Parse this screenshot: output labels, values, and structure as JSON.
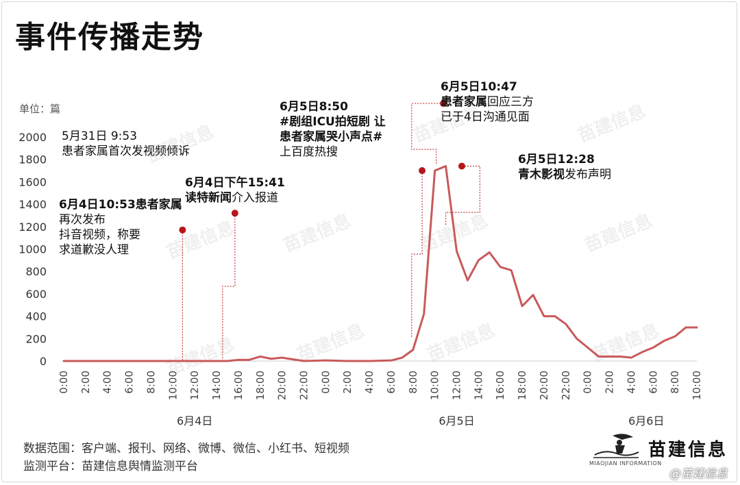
{
  "title": "事件传播走势",
  "unit_label": "单位：篇",
  "colors": {
    "line": "#c9595a",
    "dot": "#b5151b",
    "leader": "#c4393c",
    "axis": "#cccccc"
  },
  "annotations": [
    {
      "key": "a1",
      "bold": "",
      "rest": [
        "5月31日 9:53",
        "患者家属首次发视频倾诉"
      ],
      "marker": false
    },
    {
      "key": "a2",
      "bold": "6月4日10:53患者家属",
      "rest_inline": "再次发布",
      "rest": [
        "抖音视频，称要",
        "求道歉没人理"
      ],
      "marker_x": "6月4日 10:53",
      "marker_y": 1170
    },
    {
      "key": "a3",
      "bold": "6月4日下午15:41",
      "line2_bold": "读特新闻",
      "line2_rest": "介入报道",
      "marker_x": "6月4日 15:41",
      "marker_y": 1320
    },
    {
      "key": "a4",
      "bold": "6月5日8:50",
      "line2_bold": "#剧组ICU拍短剧 让",
      "line3_bold": "患者家属哭小声点#",
      "line4": "上百度热搜",
      "marker_x": "6月5日 08:50",
      "marker_y": 1700
    },
    {
      "key": "a5",
      "bold": "6月5日10:47",
      "line2_bold": "患者家属",
      "line2_rest": "回应三方",
      "line3": "已于4日沟通见面",
      "marker_x": "6月5日 10:47",
      "marker_y": 2300
    },
    {
      "key": "a6",
      "bold": "6月5日12:28",
      "line2_bold": "青木影视",
      "line2_rest": "发布声明",
      "marker_x": "6月5日 12:28",
      "marker_y": 1740
    }
  ],
  "footer": {
    "scope": "数据范围：客户端、报刊、网络、微博、微信、小红书、短视频",
    "platform": "监测平台：苗建信息舆情监测平台"
  },
  "brand": {
    "name": "苗建信息",
    "sub": "MIAOJIAN INFORMATION"
  },
  "watermark_text": "苗建信息",
  "bottom_watermark": "@苗建信息",
  "chart_data": {
    "type": "line",
    "title": "事件传播走势",
    "ylabel": "单位：篇",
    "ylim": [
      0,
      2000
    ],
    "yticks": [
      0,
      200,
      400,
      600,
      800,
      1000,
      1200,
      1400,
      1600,
      1800,
      2000
    ],
    "grid": false,
    "xtick_labels": [
      "0:00",
      "2:00",
      "4:00",
      "6:00",
      "8:00",
      "10:00",
      "12:00",
      "14:00",
      "16:00",
      "18:00",
      "20:00",
      "22:00",
      "0:00",
      "2:00",
      "4:00",
      "6:00",
      "8:00",
      "10:00",
      "12:00",
      "14:00",
      "16:00",
      "18:00",
      "20:00",
      "22:00",
      "0:00",
      "2:00",
      "4:00",
      "6:00",
      "8:00",
      "10:00"
    ],
    "day_labels": [
      "6月4日",
      "6月5日",
      "6月6日"
    ],
    "series": [
      {
        "x": [
          "6月4日 00:00",
          "6月4日 02:00",
          "6月4日 04:00",
          "6月4日 06:00",
          "6月4日 08:00",
          "6月4日 10:00",
          "6月4日 12:00",
          "6月4日 14:00",
          "6月4日 15:00",
          "6月4日 16:00",
          "6月4日 17:00",
          "6月4日 18:00",
          "6月4日 19:00",
          "6月4日 20:00",
          "6月4日 22:00",
          "6月5日 00:00",
          "6月5日 02:00",
          "6月5日 04:00",
          "6月5日 06:00",
          "6月5日 07:00",
          "6月5日 08:00",
          "6月5日 09:00",
          "6月5日 10:00",
          "6月5日 11:00",
          "6月5日 12:00",
          "6月5日 13:00",
          "6月5日 14:00",
          "6月5日 15:00",
          "6月5日 16:00",
          "6月5日 17:00",
          "6月5日 18:00",
          "6月5日 19:00",
          "6月5日 20:00",
          "6月5日 21:00",
          "6月5日 22:00",
          "6月5日 23:00",
          "6月6日 00:00",
          "6月6日 01:00",
          "6月6日 02:00",
          "6月6日 03:00",
          "6月6日 04:00",
          "6月6日 05:00",
          "6月6日 06:00",
          "6月6日 07:00",
          "6月6日 08:00",
          "6月6日 09:00",
          "6月6日 10:00"
        ],
        "values": [
          0,
          0,
          0,
          0,
          0,
          0,
          0,
          0,
          0,
          10,
          10,
          40,
          20,
          30,
          0,
          5,
          0,
          0,
          5,
          30,
          100,
          420,
          1700,
          1740,
          980,
          720,
          900,
          970,
          840,
          810,
          490,
          590,
          400,
          400,
          330,
          200,
          120,
          40,
          40,
          40,
          30,
          80,
          120,
          180,
          220,
          300,
          300
        ]
      }
    ]
  }
}
